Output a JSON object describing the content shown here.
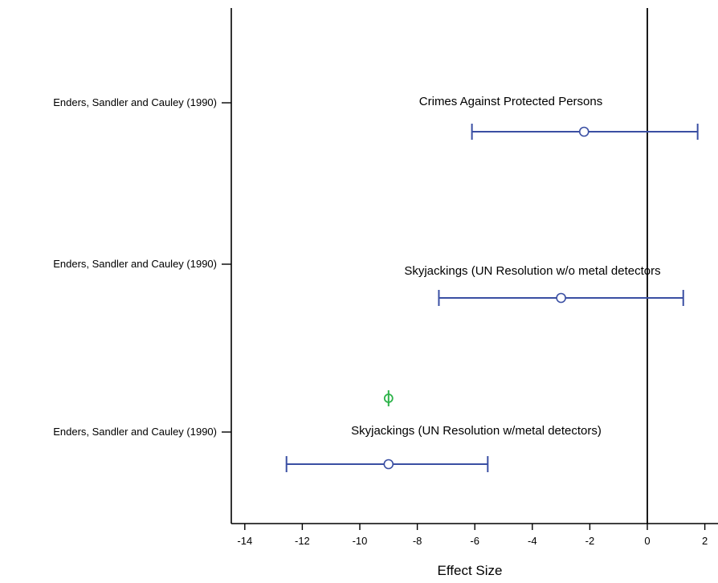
{
  "chart_data": {
    "type": "scatter",
    "subtype": "forest-plot",
    "xlabel": "Effect Size",
    "xlim": [
      -15,
      2.5
    ],
    "x_ticks": [
      -14,
      -12,
      -10,
      -8,
      -6,
      -4,
      -2,
      0,
      2
    ],
    "reference_line_x": 0,
    "grid": false,
    "studies": [
      {
        "label": "Enders, Sandler and Cauley (1990)",
        "annotation": "Crimes Against Protected Persons",
        "estimate": -2.2,
        "ci_low": -6.1,
        "ci_high": 1.75,
        "color": "#3a4fa3"
      },
      {
        "label": "Enders, Sandler and Cauley (1990)",
        "annotation": "Skyjackings (UN Resolution w/o metal detectors",
        "estimate": -3.0,
        "ci_low": -7.25,
        "ci_high": 1.25,
        "color": "#3a4fa3"
      },
      {
        "label": "Enders, Sandler and Cauley (1990)",
        "annotation": "Skyjackings (UN Resolution w/metal detectors)",
        "estimate": -9.0,
        "ci_low": -12.55,
        "ci_high": -5.55,
        "color": "#3a4fa3"
      }
    ],
    "pooled_marker": {
      "estimate": -9.0,
      "color": "#2db34a"
    }
  }
}
